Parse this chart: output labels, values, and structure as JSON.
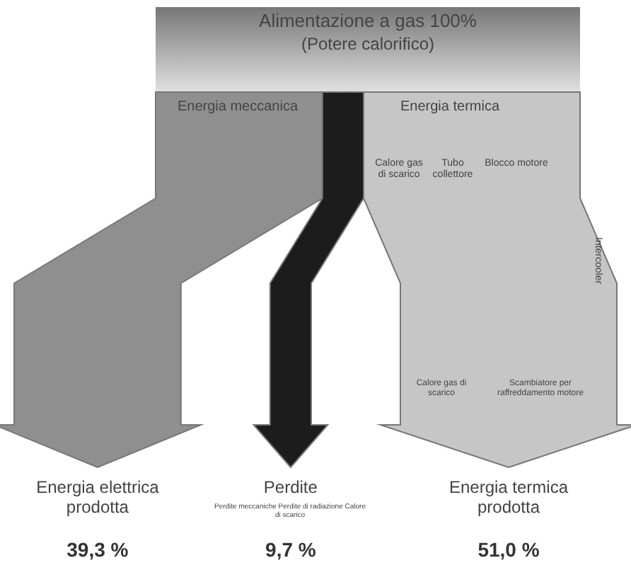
{
  "chart_data": {
    "type": "other",
    "title": "Alimentazione a gas 100%",
    "subtitle": "(Potere calorifico)",
    "categories": [
      "Energia elettrica\nprodotta",
      "Perdite",
      "Energia termica\nprodotta"
    ],
    "values": [
      39.3,
      9.7,
      51.0
    ],
    "value_labels": [
      "39,3 %",
      "9,7 %",
      "51,0 %"
    ],
    "colors": [
      "#8f8f8f",
      "#1c1c1c",
      "#c6c6c6"
    ],
    "annotations": [
      "Energia meccanica",
      "Energia termica",
      "Calore gas di scarico",
      "Tubo collettore",
      "Blocco motore",
      "Intercooler",
      "Calore gas di scarico",
      "Scambiatore per raffreddamento motore",
      "Perdite meccaniche Perdite di radiazione Calore di scarico"
    ]
  }
}
